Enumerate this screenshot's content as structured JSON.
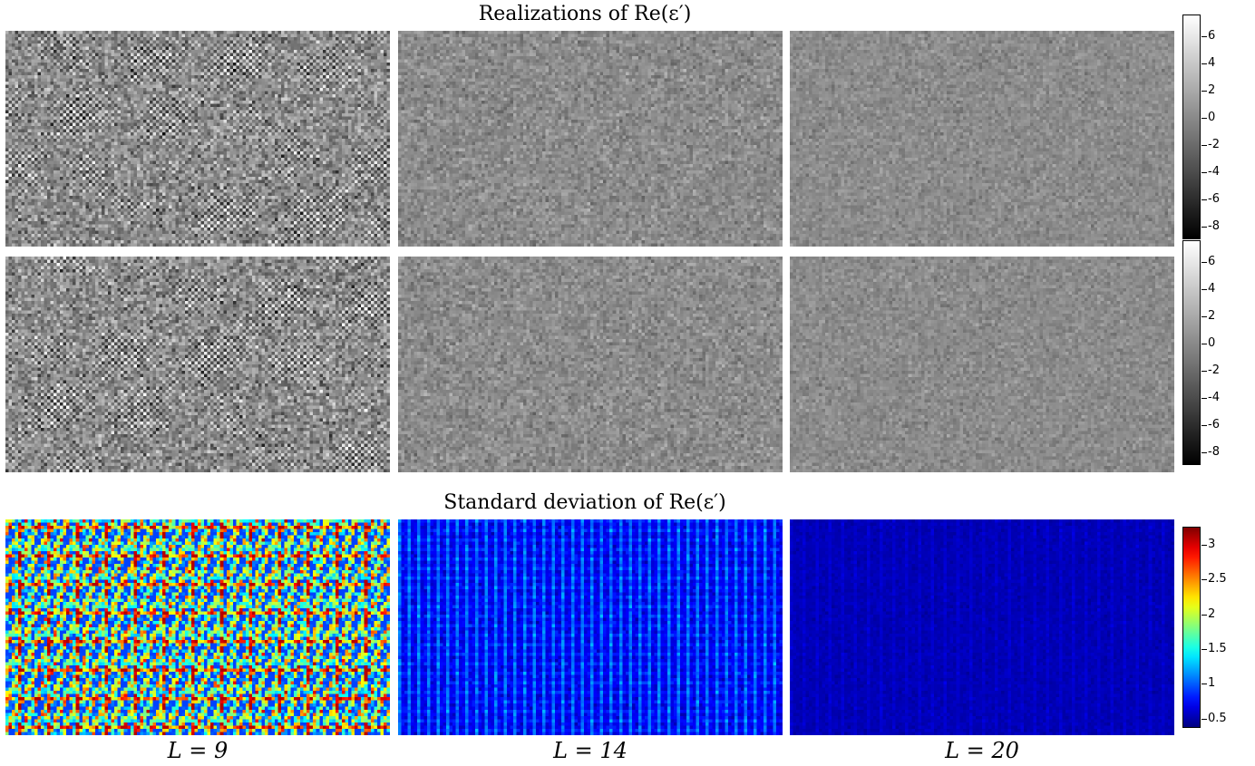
{
  "chart_data": {
    "type": "heatmap",
    "sections": [
      {
        "title": "Realizations of Re(ε′)",
        "rows": 2,
        "colormap": "gray"
      },
      {
        "title": "Standard deviation of Re(ε′)",
        "rows": 1,
        "colormap": "jet"
      }
    ],
    "columns": [
      {
        "label": "L = 9",
        "L": 9
      },
      {
        "label": "L = 14",
        "L": 14
      },
      {
        "label": "L = 20",
        "L": 20
      }
    ],
    "colorbars": [
      {
        "colormap": "gray",
        "range": [
          -9,
          7.5
        ],
        "ticks": [
          "6",
          "4",
          "2",
          "0",
          "-2",
          "-4",
          "-6",
          "-8"
        ],
        "tick_values": [
          6,
          4,
          2,
          0,
          -2,
          -4,
          -6,
          -8
        ]
      },
      {
        "colormap": "gray",
        "range": [
          -9,
          7.5
        ],
        "ticks": [
          "6",
          "4",
          "2",
          "0",
          "-2",
          "-4",
          "-6",
          "-8"
        ],
        "tick_values": [
          6,
          4,
          2,
          0,
          -2,
          -4,
          -6,
          -8
        ]
      },
      {
        "colormap": "jet",
        "range": [
          0.35,
          3.25
        ],
        "ticks": [
          "3",
          "2.5",
          "2",
          "1.5",
          "1",
          "0.5"
        ],
        "tick_values": [
          3,
          2.5,
          2,
          1.5,
          1,
          0.5
        ]
      }
    ],
    "grid": false
  }
}
